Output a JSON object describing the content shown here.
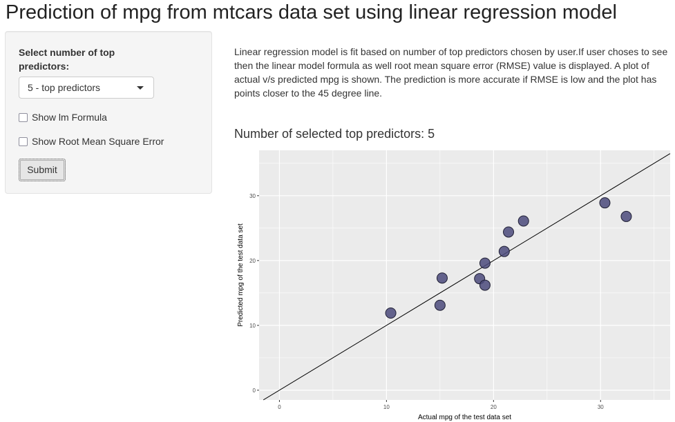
{
  "page": {
    "title": "Prediction of mpg from mtcars data set using linear regression model"
  },
  "sidebar": {
    "predictor_label": "Select number of top predictors:",
    "select": {
      "selected": "5 - top predictors",
      "icon": "caret-down-icon"
    },
    "checkboxes": [
      {
        "label": "Show lm Formula",
        "checked": false
      },
      {
        "label": "Show Root Mean Square Error",
        "checked": false
      }
    ],
    "submit_label": "Submit"
  },
  "main": {
    "description": "Linear regression model is fit based on number of top predictors chosen by user.If user choses to see then the linear model formula as well root mean square error (RMSE) value is displayed. A plot of actual v/s predicted mpg is shown. The prediction is more accurate if RMSE is low and the plot has points closer to the 45 degree line.",
    "output_heading": "Number of selected top predictors: 5"
  },
  "chart_data": {
    "type": "scatter",
    "title": "",
    "xlabel": "Actual mpg of the test data set",
    "ylabel": "Predicted mpg of the test data set",
    "xlim": [
      -1.9,
      36.5
    ],
    "ylim": [
      -1.5,
      37.0
    ],
    "xticks": [
      0,
      10,
      20,
      30
    ],
    "yticks": [
      0,
      10,
      20,
      30
    ],
    "grid": true,
    "panel_color": "#ebebeb",
    "point_color": "#4b4a7b",
    "reference_line": {
      "slope": 1,
      "intercept": 0
    },
    "points": [
      {
        "x": 10.4,
        "y": 11.9
      },
      {
        "x": 15.0,
        "y": 13.1
      },
      {
        "x": 15.2,
        "y": 17.3
      },
      {
        "x": 18.7,
        "y": 17.2
      },
      {
        "x": 19.2,
        "y": 16.2
      },
      {
        "x": 19.2,
        "y": 19.6
      },
      {
        "x": 21.0,
        "y": 21.4
      },
      {
        "x": 21.4,
        "y": 24.4
      },
      {
        "x": 22.8,
        "y": 26.1
      },
      {
        "x": 30.4,
        "y": 28.9
      },
      {
        "x": 32.4,
        "y": 26.8
      }
    ]
  }
}
